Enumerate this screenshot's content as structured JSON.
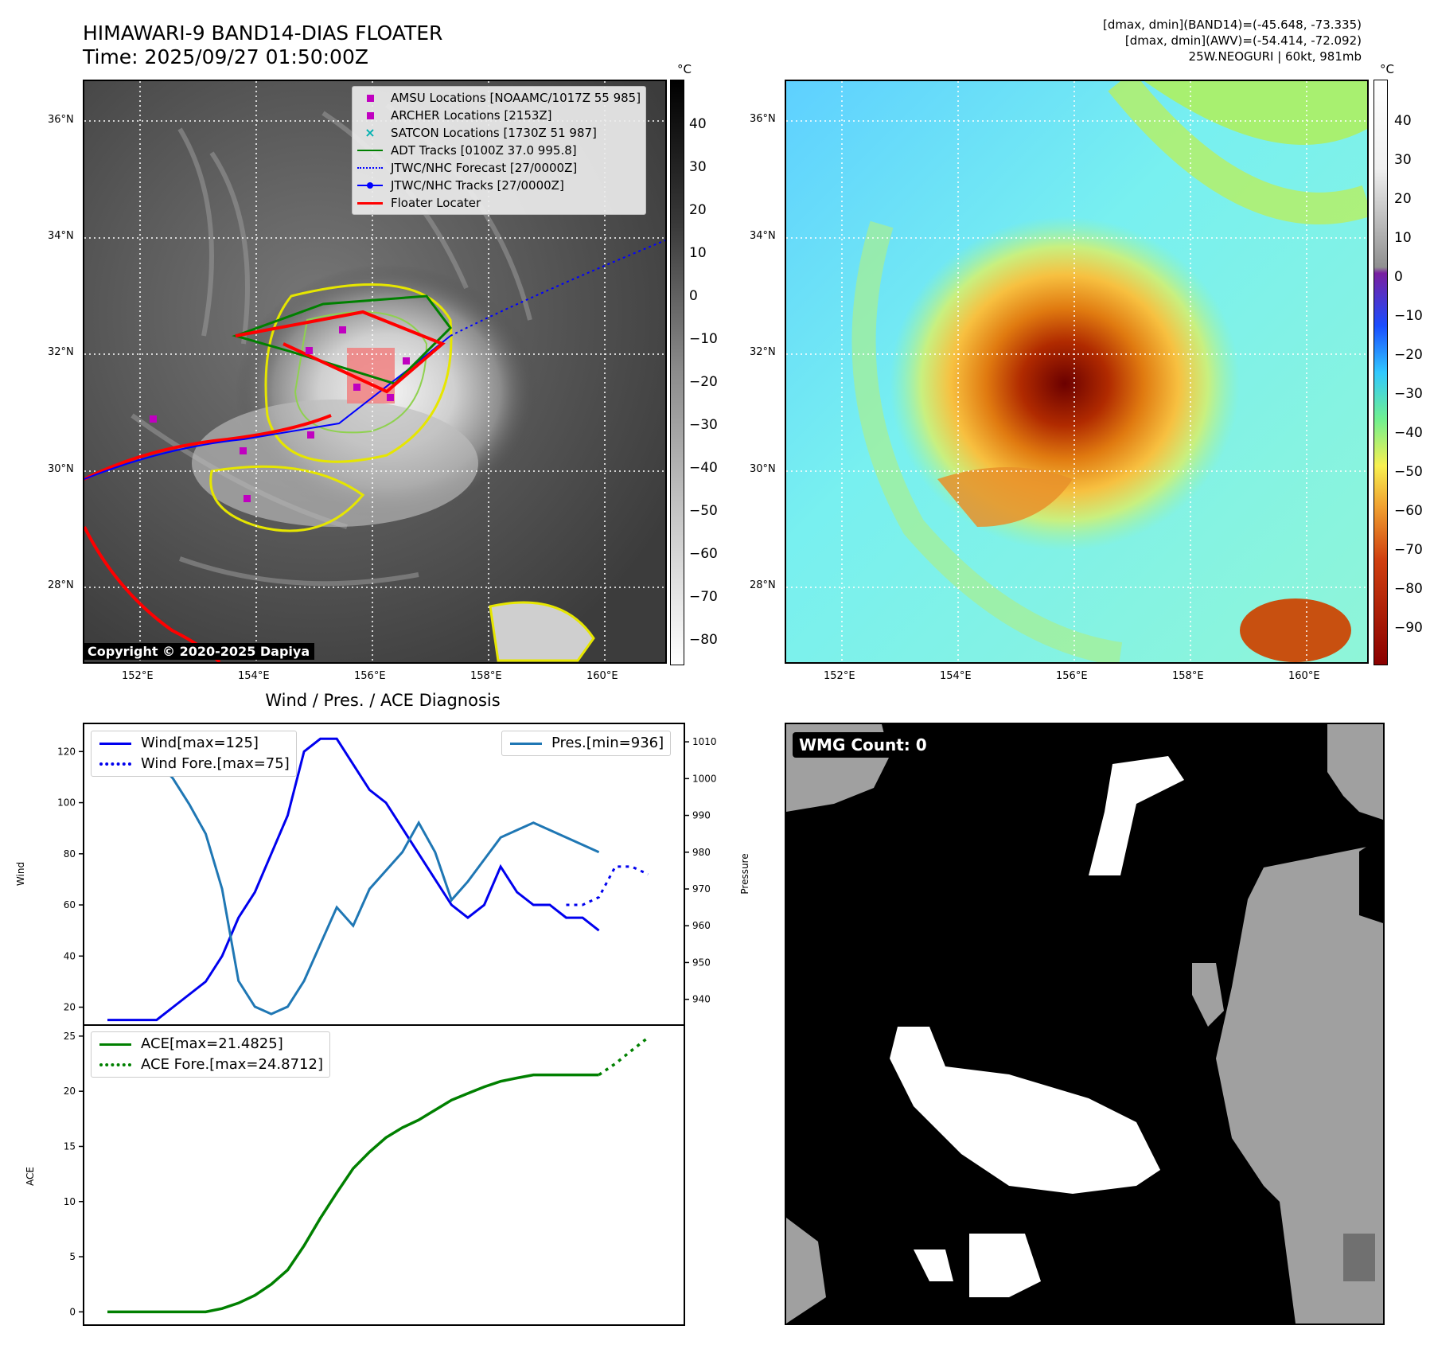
{
  "header": {
    "title_line1": "HIMAWARI-9 BAND14-DIAS FLOATER",
    "title_line2": "Time: 2025/09/27 01:50:00Z",
    "right_line1": "[dmax, dmin](BAND14)=(-45.648, -73.335)",
    "right_line2": "[dmax, dmin](AWV)=(-54.414, -72.092)",
    "right_line3": "25W.NEOGURI | 60kt, 981mb"
  },
  "map": {
    "lat_labels": [
      "36°N",
      "34°N",
      "32°N",
      "30°N",
      "28°N"
    ],
    "lon_labels": [
      "152°E",
      "154°E",
      "156°E",
      "158°E",
      "160°E"
    ],
    "unit": "°C",
    "colorbar_ticks_gray": [
      "40",
      "30",
      "20",
      "10",
      "0",
      "−10",
      "−20",
      "−30",
      "−40",
      "−50",
      "−60",
      "−70",
      "−80"
    ],
    "colorbar_ticks_color": [
      "40",
      "30",
      "20",
      "10",
      "0",
      "−10",
      "−20",
      "−30",
      "−40",
      "−50",
      "−60",
      "−70",
      "−80",
      "−90"
    ],
    "copyright": "Copyright © 2020-2025 Dapiya",
    "legend": [
      {
        "label": "AMSU Locations [NOAAMC/1017Z 55 985]",
        "icon": "square",
        "color": "#c000c0"
      },
      {
        "label": "ARCHER Locations [2153Z]",
        "icon": "square",
        "color": "#c000c0"
      },
      {
        "label": "SATCON Locations [1730Z 51 987]",
        "icon": "x-mark",
        "color": "#00b0b0"
      },
      {
        "label": "ADT Tracks [0100Z 37.0 995.8]",
        "icon": "line",
        "color": "#008000"
      },
      {
        "label": "JTWC/NHC Forecast [27/0000Z]",
        "icon": "dotted-line",
        "color": "#0000ff"
      },
      {
        "label": "JTWC/NHC Tracks [27/0000Z]",
        "icon": "line-dot",
        "color": "#0000ff"
      },
      {
        "label": "Floater Locater",
        "icon": "line",
        "color": "#ff0000"
      }
    ]
  },
  "diagnosis": {
    "title": "Wind / Pres. / ACE Diagnosis",
    "wmg_label": "WMG Count: 0"
  },
  "chart_data": [
    {
      "type": "line",
      "ylabel": "Wind",
      "y2label": "Pressure",
      "ylim": [
        13,
        131
      ],
      "y2lim": [
        933,
        1015
      ],
      "yticks": [
        20,
        40,
        60,
        80,
        100,
        120
      ],
      "y2ticks": [
        940,
        950,
        960,
        970,
        980,
        990,
        1000,
        1010
      ],
      "xlim": [
        0,
        34
      ],
      "series": [
        {
          "name": "Wind[max=125]",
          "axis": "left",
          "style": "solid",
          "color": "#0000ee",
          "x": [
            0,
            1,
            2,
            3,
            4,
            5,
            6,
            7,
            8,
            9,
            10,
            11,
            12,
            13,
            14,
            15,
            16,
            17,
            18,
            19,
            20,
            21,
            22,
            23,
            24,
            25,
            26,
            27,
            28,
            29,
            30
          ],
          "y": [
            15,
            15,
            15,
            15,
            20,
            25,
            30,
            40,
            55,
            65,
            80,
            95,
            120,
            125,
            125,
            115,
            105,
            100,
            90,
            80,
            70,
            60,
            55,
            60,
            75,
            65,
            60,
            60,
            55,
            55,
            50
          ]
        },
        {
          "name": "Wind Fore.[max=75]",
          "axis": "left",
          "style": "dotted",
          "color": "#0000ee",
          "x": [
            28,
            29,
            30,
            31,
            32,
            33
          ],
          "y": [
            60,
            60,
            63,
            75,
            75,
            72
          ]
        },
        {
          "name": "Pres.[min=936]",
          "axis": "right",
          "style": "solid",
          "color": "#1f77b4",
          "x": [
            0,
            1,
            2,
            3,
            4,
            5,
            6,
            7,
            8,
            9,
            10,
            11,
            12,
            13,
            14,
            15,
            16,
            17,
            18,
            19,
            20,
            21,
            22,
            23,
            24,
            25,
            26,
            27,
            28,
            29,
            30
          ],
          "y": [
            1004,
            1010,
            1010,
            1005,
            1000,
            993,
            985,
            970,
            945,
            938,
            936,
            938,
            945,
            955,
            965,
            960,
            970,
            975,
            980,
            988,
            980,
            967,
            972,
            978,
            984,
            986,
            988,
            986,
            984,
            982,
            980
          ]
        }
      ]
    },
    {
      "type": "line",
      "ylabel": "ACE",
      "ylim": [
        -1.2,
        26
      ],
      "yticks": [
        0,
        5,
        10,
        15,
        20,
        25
      ],
      "xlim": [
        0,
        34
      ],
      "series": [
        {
          "name": "ACE[max=21.4825]",
          "style": "solid",
          "color": "#008000",
          "x": [
            0,
            2,
            4,
            6,
            7,
            8,
            9,
            10,
            11,
            12,
            13,
            14,
            15,
            16,
            17,
            18,
            19,
            20,
            21,
            22,
            23,
            24,
            25,
            26,
            27,
            28,
            29,
            30
          ],
          "y": [
            0,
            0,
            0,
            0,
            0.3,
            0.8,
            1.5,
            2.5,
            3.8,
            6,
            8.5,
            10.8,
            13,
            14.5,
            15.8,
            16.7,
            17.4,
            18.3,
            19.2,
            19.8,
            20.4,
            20.9,
            21.2,
            21.48,
            21.48,
            21.48,
            21.48,
            21.48
          ]
        },
        {
          "name": "ACE Fore.[max=24.8712]",
          "style": "dotted",
          "color": "#008000",
          "x": [
            30,
            31,
            32,
            33
          ],
          "y": [
            21.48,
            22.5,
            23.7,
            24.87
          ]
        }
      ]
    }
  ]
}
